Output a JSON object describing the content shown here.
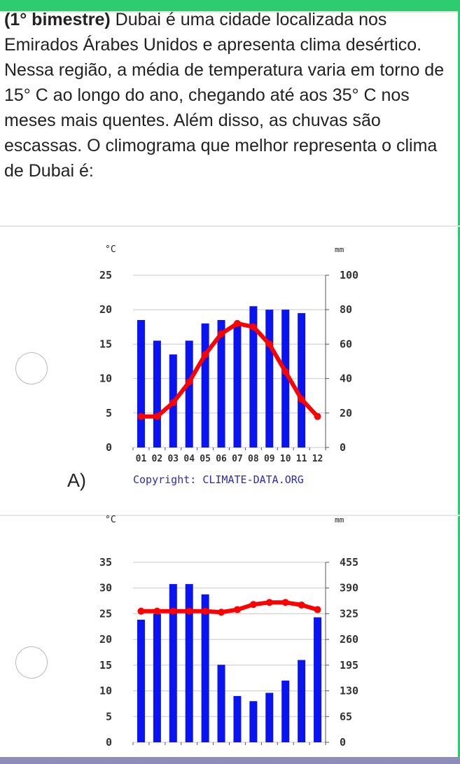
{
  "question": {
    "prefix": "(1° bimestre)",
    "text": " Dubai é uma cidade localizada nos Emirados Árabes Unidos e apresenta clima desértico. Nessa região, a média de temperatura varia em torno de 15° C ao longo do ano, chegando até aos 35° C nos meses mais quentes. Além disso, as chuvas são escassas. O climograma que melhor representa o clima de Dubai é:"
  },
  "options": [
    {
      "letter": "A)",
      "copyright": "Copyright: CLIMATE-DATA.ORG"
    },
    {
      "letter": "",
      "copyright": ""
    }
  ],
  "colors": {
    "accent": "#2ecc71",
    "bars": "#0a14f0",
    "line": "#ff0000"
  },
  "chart_data": [
    {
      "type": "bar",
      "left_unit": "°C",
      "right_unit": "mm",
      "categories": [
        "01",
        "02",
        "03",
        "04",
        "05",
        "06",
        "07",
        "08",
        "09",
        "10",
        "11",
        "12"
      ],
      "left_ticks": [
        "0",
        "5",
        "10",
        "15",
        "20",
        "25"
      ],
      "right_ticks": [
        "0",
        "20",
        "40",
        "60",
        "80",
        "100"
      ],
      "ylim_left": [
        0,
        25
      ],
      "ylim_right": [
        0,
        100
      ],
      "series": [
        {
          "kind": "bar",
          "axis": "right",
          "values": [
            74,
            62,
            54,
            62,
            72,
            74,
            72,
            82,
            80,
            80,
            78,
            0
          ]
        },
        {
          "kind": "line",
          "axis": "left",
          "values": [
            4.5,
            4.5,
            6.5,
            9.5,
            13.5,
            16.5,
            18.0,
            17.5,
            15.0,
            11.0,
            7.0,
            4.5
          ]
        }
      ],
      "grid": true
    },
    {
      "type": "bar",
      "left_unit": "°C",
      "right_unit": "mm",
      "left_ticks": [
        "0",
        "5",
        "10",
        "15",
        "20",
        "25",
        "30",
        "35"
      ],
      "right_ticks": [
        "0",
        "65",
        "130",
        "195",
        "260",
        "325",
        "390",
        "455"
      ],
      "ylim_left": [
        0,
        35
      ],
      "ylim_right": [
        0,
        455
      ],
      "series": [
        {
          "kind": "bar",
          "axis": "right",
          "values": [
            310,
            325,
            400,
            400,
            374,
            196,
            117,
            104,
            125,
            156,
            208,
            316
          ]
        },
        {
          "kind": "line",
          "axis": "left",
          "values": [
            25.5,
            25.5,
            25.5,
            25.5,
            25.5,
            25.3,
            25.8,
            26.8,
            27.2,
            27.2,
            26.7,
            25.8
          ]
        }
      ],
      "grid": true
    }
  ]
}
